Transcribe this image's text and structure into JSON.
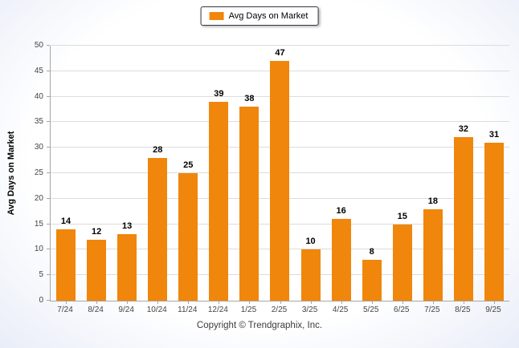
{
  "chart_data": {
    "type": "bar",
    "title": "",
    "legend": "Avg Days on Market",
    "ylabel": "Avg Days on Market",
    "xlabel": "",
    "categories": [
      "7/24",
      "8/24",
      "9/24",
      "10/24",
      "11/24",
      "12/24",
      "1/25",
      "2/25",
      "3/25",
      "4/25",
      "5/25",
      "6/25",
      "7/25",
      "8/25",
      "9/25"
    ],
    "values": [
      14,
      12,
      13,
      28,
      25,
      39,
      38,
      47,
      10,
      16,
      8,
      15,
      18,
      32,
      31
    ],
    "ylim": [
      0,
      50
    ],
    "ytick_step": 5,
    "grid": "horizontal",
    "legend_position": "top-center",
    "bar_color": "#F0860B",
    "gridline_color": "#dcdcdc",
    "axis_color": "#a6a6a6"
  },
  "footer": {
    "copyright": "Copyright © Trendgraphix, Inc."
  }
}
